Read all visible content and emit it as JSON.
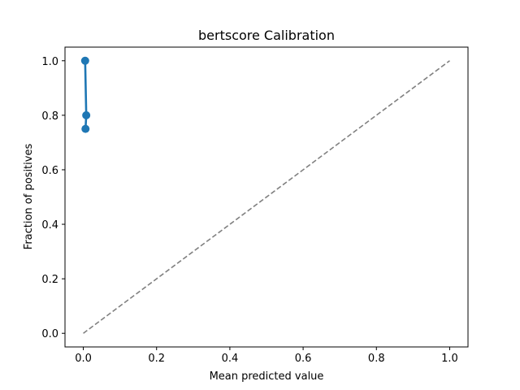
{
  "chart_data": {
    "type": "line",
    "title": "bertscore Calibration",
    "xlabel": "Mean predicted value",
    "ylabel": "Fraction of positives",
    "xlim": [
      -0.05,
      1.05
    ],
    "ylim": [
      -0.05,
      1.05
    ],
    "xticks": [
      "0.0",
      "0.2",
      "0.4",
      "0.6",
      "0.8",
      "1.0"
    ],
    "yticks": [
      "0.0",
      "0.2",
      "0.4",
      "0.6",
      "0.8",
      "1.0"
    ],
    "grid": false,
    "series": [
      {
        "style": "line-markers",
        "color": "#1f77b4",
        "x": [
          0.005,
          0.008,
          0.006
        ],
        "y": [
          1.0,
          0.8,
          0.75
        ]
      },
      {
        "style": "dashed-reference",
        "color": "#808080",
        "x": [
          0.0,
          1.0
        ],
        "y": [
          0.0,
          1.0
        ]
      }
    ]
  }
}
